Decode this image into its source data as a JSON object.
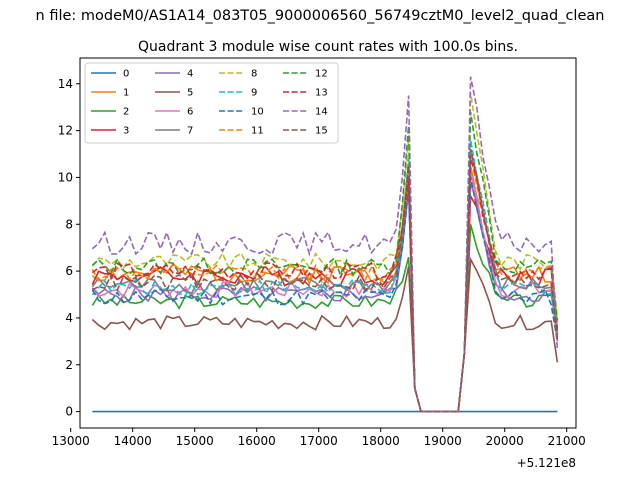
{
  "chart_data": {
    "type": "line",
    "suptitle": "n file: modeM0/AS1A14_083T05_9000006560_56749cztM0_level2_quad_clean",
    "title": "Quadrant 3 module wise count rates with 100.0s bins.",
    "xlabel": "",
    "ylabel": "",
    "x_offset_label": "+5.121e8",
    "xlim": [
      13150,
      21150
    ],
    "ylim": [
      -0.7,
      15.1
    ],
    "xticks": [
      13000,
      14000,
      15000,
      16000,
      17000,
      18000,
      19000,
      20000,
      21000
    ],
    "yticks": [
      0,
      2,
      4,
      6,
      8,
      10,
      12,
      14
    ],
    "x_start": 13350,
    "x_step": 100,
    "n_points": 76,
    "gap_points": [
      {
        "x": 18650,
        "y": 0.0
      },
      {
        "x": 18750,
        "y": 0.0
      },
      {
        "x": 18850,
        "y": 0.0
      },
      {
        "x": 18950,
        "y": 0.0
      },
      {
        "x": 19050,
        "y": 0.0
      },
      {
        "x": 19150,
        "y": 0.0
      },
      {
        "x": 19250,
        "y": 0.0
      }
    ],
    "legend": {
      "location": "upper-left",
      "columns": 4
    },
    "series": [
      {
        "name": "0",
        "color": "#1f77b4",
        "dash": "solid",
        "base": 0.0,
        "noise": 0.0,
        "seed": 1,
        "peak1": 0.0,
        "peak2": 0.0,
        "end": 0.0
      },
      {
        "name": "1",
        "color": "#ff7f0e",
        "dash": "solid",
        "base": 5.9,
        "noise": 0.35,
        "seed": 2,
        "peak1": 10.2,
        "peak2": 10.5,
        "end": 3.2
      },
      {
        "name": "2",
        "color": "#2ca02c",
        "dash": "solid",
        "base": 4.7,
        "noise": 0.25,
        "seed": 3,
        "peak1": 6.6,
        "peak2": 8.0,
        "end": 3.6
      },
      {
        "name": "3",
        "color": "#d62728",
        "dash": "solid",
        "base": 5.8,
        "noise": 0.35,
        "seed": 4,
        "peak1": 10.6,
        "peak2": 9.2,
        "end": 3.5
      },
      {
        "name": "4",
        "color": "#9467bd",
        "dash": "solid",
        "base": 5.0,
        "noise": 0.3,
        "seed": 5,
        "peak1": 9.5,
        "peak2": 9.8,
        "end": 3.0
      },
      {
        "name": "5",
        "color": "#8c564b",
        "dash": "solid",
        "base": 3.8,
        "noise": 0.25,
        "seed": 6,
        "peak1": 6.2,
        "peak2": 6.5,
        "end": 2.1
      },
      {
        "name": "6",
        "color": "#e377c2",
        "dash": "solid",
        "base": 5.2,
        "noise": 0.3,
        "seed": 7,
        "peak1": 10.0,
        "peak2": 10.2,
        "end": 3.2
      },
      {
        "name": "7",
        "color": "#7f7f7f",
        "dash": "solid",
        "base": 5.4,
        "noise": 0.3,
        "seed": 8,
        "peak1": 9.8,
        "peak2": 11.2,
        "end": 3.4
      },
      {
        "name": "8",
        "color": "#bcbd22",
        "dash": "dashed",
        "base": 6.4,
        "noise": 0.3,
        "seed": 9,
        "peak1": 11.6,
        "peak2": 13.6,
        "end": 3.8
      },
      {
        "name": "9",
        "color": "#17becf",
        "dash": "dashed",
        "base": 5.3,
        "noise": 0.3,
        "seed": 10,
        "peak1": 10.8,
        "peak2": 11.6,
        "end": 3.3
      },
      {
        "name": "10",
        "color": "#1f77b4",
        "dash": "dashed",
        "base": 4.9,
        "noise": 0.3,
        "seed": 11,
        "peak1": 9.6,
        "peak2": 10.0,
        "end": 3.0
      },
      {
        "name": "11",
        "color": "#ff7f0e",
        "dash": "dashed",
        "base": 5.9,
        "noise": 0.3,
        "seed": 12,
        "peak1": 10.4,
        "peak2": 11.0,
        "end": 3.4
      },
      {
        "name": "12",
        "color": "#2ca02c",
        "dash": "dashed",
        "base": 6.2,
        "noise": 0.3,
        "seed": 13,
        "peak1": 12.2,
        "peak2": 12.8,
        "end": 3.9
      },
      {
        "name": "13",
        "color": "#d62728",
        "dash": "dashed",
        "base": 6.0,
        "noise": 0.3,
        "seed": 14,
        "peak1": 10.0,
        "peak2": 10.8,
        "end": 3.3
      },
      {
        "name": "14",
        "color": "#9467bd",
        "dash": "dashed",
        "base": 7.2,
        "noise": 0.4,
        "seed": 15,
        "peak1": 13.5,
        "peak2": 14.3,
        "end": 2.6
      },
      {
        "name": "15",
        "color": "#8c564b",
        "dash": "dashed",
        "base": 5.5,
        "noise": 0.3,
        "seed": 16,
        "peak1": 10.5,
        "peak2": 11.2,
        "end": 3.1
      }
    ]
  }
}
